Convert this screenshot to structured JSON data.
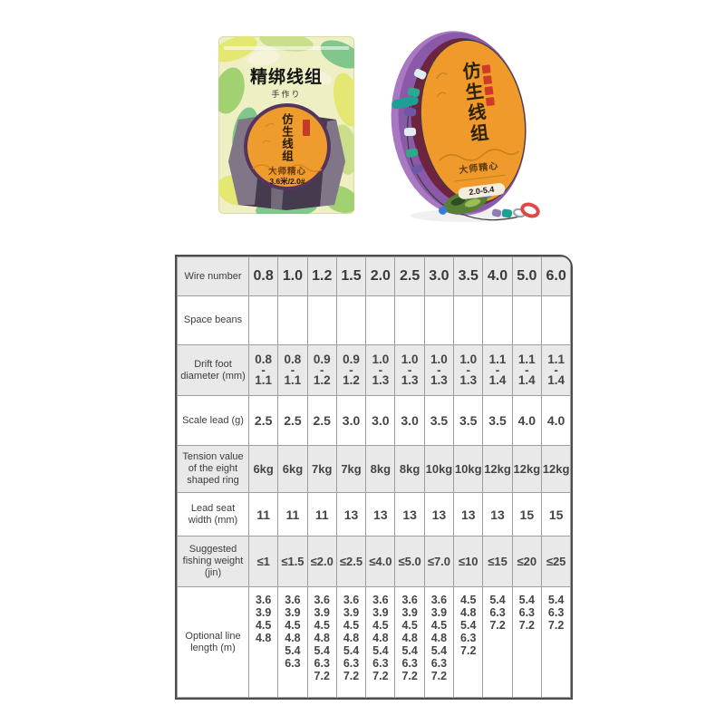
{
  "products": {
    "package": {
      "title": "精绑线组",
      "subtitle": "手作り",
      "badge_vertical": "仿生线组",
      "badge_brand": "大师精心",
      "badge_spec": "3.6米/2.0#"
    },
    "spool": {
      "badge_vertical": "仿生线组",
      "badge_brand": "大师精心",
      "badge_spec": "2.0-5.4"
    },
    "colors": {
      "label_orange": "#ef9c2e",
      "spool_purple": "#8a5aa8",
      "camo_green": "#7cc487",
      "camo_yellow": "#e4e86e"
    }
  },
  "table": {
    "columns": [
      "0.8",
      "1.0",
      "1.2",
      "1.5",
      "2.0",
      "2.5",
      "3.0",
      "3.5",
      "4.0",
      "5.0",
      "6.0"
    ],
    "rows": [
      {
        "label": "Wire number",
        "header": true,
        "shaded": true,
        "values": [
          "0.8",
          "1.0",
          "1.2",
          "1.5",
          "2.0",
          "2.5",
          "3.0",
          "3.5",
          "4.0",
          "5.0",
          "6.0"
        ]
      },
      {
        "label": "Space beans",
        "shaded": false,
        "values": [
          "",
          "",
          "",
          "",
          "",
          "",
          "",
          "",
          "",
          "",
          ""
        ]
      },
      {
        "label": "Drift foot diameter (mm)",
        "shaded": true,
        "values": [
          [
            "0.8",
            "-",
            "1.1"
          ],
          [
            "0.8",
            "-",
            "1.1"
          ],
          [
            "0.9",
            "-",
            "1.2"
          ],
          [
            "0.9",
            "-",
            "1.2"
          ],
          [
            "1.0",
            "-",
            "1.3"
          ],
          [
            "1.0",
            "-",
            "1.3"
          ],
          [
            "1.0",
            "-",
            "1.3"
          ],
          [
            "1.0",
            "-",
            "1.3"
          ],
          [
            "1.1",
            "-",
            "1.4"
          ],
          [
            "1.1",
            "-",
            "1.4"
          ],
          [
            "1.1",
            "-",
            "1.4"
          ]
        ]
      },
      {
        "label": "Scale lead (g)",
        "shaded": false,
        "values": [
          "2.5",
          "2.5",
          "2.5",
          "3.0",
          "3.0",
          "3.0",
          "3.5",
          "3.5",
          "3.5",
          "4.0",
          "4.0"
        ]
      },
      {
        "label": "Tension value of the eight shaped ring",
        "shaded": true,
        "values": [
          "6kg",
          "6kg",
          "7kg",
          "7kg",
          "8kg",
          "8kg",
          "10kg",
          "10kg",
          "12kg",
          "12kg",
          "12kg"
        ]
      },
      {
        "label": "Lead seat width (mm)",
        "shaded": false,
        "values": [
          "11",
          "11",
          "11",
          "13",
          "13",
          "13",
          "13",
          "13",
          "13",
          "15",
          "15"
        ]
      },
      {
        "label": "Suggested fishing weight (jin)",
        "shaded": true,
        "values": [
          "≤1",
          "≤1.5",
          "≤2.0",
          "≤2.5",
          "≤4.0",
          "≤5.0",
          "≤7.0",
          "≤10",
          "≤15",
          "≤20",
          "≤25"
        ]
      },
      {
        "label": "Optional line length (m)",
        "shaded": false,
        "top_align": true,
        "values": [
          [
            "3.6",
            "3.9",
            "4.5",
            "4.8"
          ],
          [
            "3.6",
            "3.9",
            "4.5",
            "4.8",
            "5.4",
            "6.3"
          ],
          [
            "3.6",
            "3.9",
            "4.5",
            "4.8",
            "5.4",
            "6.3",
            "7.2"
          ],
          [
            "3.6",
            "3.9",
            "4.5",
            "4.8",
            "5.4",
            "6.3",
            "7.2"
          ],
          [
            "3.6",
            "3.9",
            "4.5",
            "4.8",
            "5.4",
            "6.3",
            "7.2"
          ],
          [
            "3.6",
            "3.9",
            "4.5",
            "4.8",
            "5.4",
            "6.3",
            "7.2"
          ],
          [
            "3.6",
            "3.9",
            "4.5",
            "4.8",
            "5.4",
            "6.3",
            "7.2"
          ],
          [
            "4.5",
            "4.8",
            "5.4",
            "6.3",
            "7.2"
          ],
          [
            "5.4",
            "6.3",
            "7.2"
          ],
          [
            "5.4",
            "6.3",
            "7.2"
          ],
          [
            "5.4",
            "6.3",
            "7.2"
          ]
        ]
      }
    ]
  }
}
